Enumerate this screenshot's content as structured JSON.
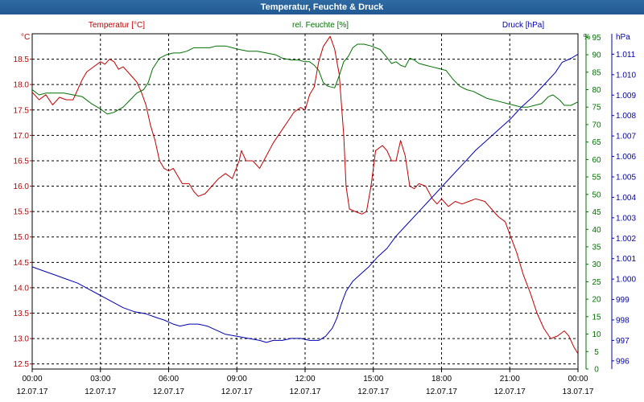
{
  "title": "Temperatur, Feuchte & Druck",
  "chart_data": {
    "type": "line",
    "x_ticks": [
      "00:00",
      "03:00",
      "06:00",
      "09:00",
      "12:00",
      "15:00",
      "18:00",
      "21:00",
      "00:00"
    ],
    "x_dates": [
      "12.07.17",
      "12.07.17",
      "12.07.17",
      "12.07.17",
      "12.07.17",
      "12.07.17",
      "12.07.17",
      "12.07.17",
      "13.07.17"
    ],
    "xlim": [
      0,
      24
    ],
    "grid": true,
    "axes": {
      "temp": {
        "label": "Temperatur [°C]",
        "unit": "°C",
        "color": "#c00000",
        "range": [
          12.4,
          19.0
        ],
        "ticks": [
          "12.5",
          "13.0",
          "13.5",
          "14.0",
          "14.5",
          "15.0",
          "15.5",
          "16.0",
          "16.5",
          "17.0",
          "17.5",
          "18.0",
          "18.5"
        ]
      },
      "hum": {
        "label": "rel. Feuchte [%]",
        "unit": "%",
        "color": "#007000",
        "range": [
          0,
          96
        ],
        "ticks": [
          "0",
          "5",
          "10",
          "15",
          "20",
          "25",
          "30",
          "35",
          "40",
          "45",
          "50",
          "55",
          "60",
          "65",
          "70",
          "75",
          "80",
          "85",
          "90",
          "95"
        ]
      },
      "press": {
        "label": "Druck [hPa]",
        "unit": "hPa",
        "color": "#0000b0",
        "range": [
          995.6,
          1012.0
        ],
        "ticks": [
          "996",
          "997",
          "998",
          "999",
          "1.000",
          "1.001",
          "1.002",
          "1.003",
          "1.004",
          "1.005",
          "1.006",
          "1.007",
          "1.008",
          "1.009",
          "1.010",
          "1.011"
        ]
      }
    },
    "series": [
      {
        "name": "Temperatur [°C]",
        "axis": "temp",
        "points": [
          [
            0,
            17.85
          ],
          [
            0.3,
            17.7
          ],
          [
            0.6,
            17.8
          ],
          [
            0.9,
            17.6
          ],
          [
            1.2,
            17.75
          ],
          [
            1.5,
            17.7
          ],
          [
            1.8,
            17.7
          ],
          [
            2.0,
            17.9
          ],
          [
            2.2,
            18.1
          ],
          [
            2.4,
            18.25
          ],
          [
            2.7,
            18.35
          ],
          [
            3.0,
            18.45
          ],
          [
            3.2,
            18.4
          ],
          [
            3.4,
            18.5
          ],
          [
            3.6,
            18.45
          ],
          [
            3.8,
            18.3
          ],
          [
            4.0,
            18.35
          ],
          [
            4.3,
            18.2
          ],
          [
            4.6,
            18.05
          ],
          [
            4.8,
            17.85
          ],
          [
            5.0,
            17.6
          ],
          [
            5.2,
            17.2
          ],
          [
            5.4,
            16.9
          ],
          [
            5.6,
            16.5
          ],
          [
            5.8,
            16.35
          ],
          [
            6.0,
            16.3
          ],
          [
            6.2,
            16.35
          ],
          [
            6.4,
            16.2
          ],
          [
            6.6,
            16.05
          ],
          [
            6.9,
            16.05
          ],
          [
            7.1,
            15.9
          ],
          [
            7.3,
            15.8
          ],
          [
            7.6,
            15.85
          ],
          [
            7.9,
            16.0
          ],
          [
            8.2,
            16.15
          ],
          [
            8.5,
            16.25
          ],
          [
            8.8,
            16.15
          ],
          [
            9.1,
            16.5
          ],
          [
            9.2,
            16.7
          ],
          [
            9.4,
            16.5
          ],
          [
            9.7,
            16.5
          ],
          [
            10.0,
            16.35
          ],
          [
            10.3,
            16.6
          ],
          [
            10.6,
            16.85
          ],
          [
            10.9,
            17.05
          ],
          [
            11.2,
            17.25
          ],
          [
            11.5,
            17.45
          ],
          [
            11.8,
            17.55
          ],
          [
            12.0,
            17.5
          ],
          [
            12.2,
            17.8
          ],
          [
            12.4,
            17.95
          ],
          [
            12.6,
            18.45
          ],
          [
            12.8,
            18.75
          ],
          [
            13.1,
            18.95
          ],
          [
            13.3,
            18.7
          ],
          [
            13.5,
            18.2
          ],
          [
            13.7,
            17.0
          ],
          [
            13.8,
            16.0
          ],
          [
            13.95,
            15.55
          ],
          [
            14.2,
            15.5
          ],
          [
            14.5,
            15.45
          ],
          [
            14.7,
            15.5
          ],
          [
            14.9,
            16.0
          ],
          [
            15.1,
            16.7
          ],
          [
            15.4,
            16.8
          ],
          [
            15.6,
            16.7
          ],
          [
            15.8,
            16.5
          ],
          [
            16.0,
            16.5
          ],
          [
            16.2,
            16.9
          ],
          [
            16.4,
            16.6
          ],
          [
            16.6,
            16.0
          ],
          [
            16.8,
            15.95
          ],
          [
            17.0,
            16.05
          ],
          [
            17.3,
            16.0
          ],
          [
            17.6,
            15.75
          ],
          [
            17.8,
            15.65
          ],
          [
            18.0,
            15.75
          ],
          [
            18.3,
            15.6
          ],
          [
            18.6,
            15.7
          ],
          [
            18.9,
            15.65
          ],
          [
            19.2,
            15.7
          ],
          [
            19.5,
            15.75
          ],
          [
            19.9,
            15.7
          ],
          [
            20.2,
            15.55
          ],
          [
            20.5,
            15.4
          ],
          [
            20.8,
            15.3
          ],
          [
            21.0,
            15.05
          ],
          [
            21.3,
            14.7
          ],
          [
            21.6,
            14.25
          ],
          [
            21.9,
            13.9
          ],
          [
            22.2,
            13.5
          ],
          [
            22.5,
            13.2
          ],
          [
            22.8,
            13.0
          ],
          [
            23.1,
            13.05
          ],
          [
            23.4,
            13.15
          ],
          [
            23.6,
            13.05
          ],
          [
            23.8,
            12.85
          ],
          [
            24.0,
            12.7
          ]
        ]
      },
      {
        "name": "rel. Feuchte [%]",
        "axis": "hum",
        "points": [
          [
            0,
            80
          ],
          [
            0.3,
            78.5
          ],
          [
            0.6,
            79
          ],
          [
            1.0,
            79
          ],
          [
            1.4,
            79
          ],
          [
            1.8,
            78.5
          ],
          [
            2.2,
            78
          ],
          [
            2.6,
            76
          ],
          [
            3.0,
            74.5
          ],
          [
            3.3,
            73
          ],
          [
            3.6,
            73.5
          ],
          [
            4.0,
            75
          ],
          [
            4.3,
            77
          ],
          [
            4.6,
            79
          ],
          [
            4.9,
            80
          ],
          [
            5.1,
            82
          ],
          [
            5.3,
            86
          ],
          [
            5.6,
            89
          ],
          [
            5.9,
            90
          ],
          [
            6.2,
            90.5
          ],
          [
            6.5,
            90.5
          ],
          [
            6.8,
            91
          ],
          [
            7.1,
            92
          ],
          [
            7.4,
            92
          ],
          [
            7.8,
            92
          ],
          [
            8.1,
            92.5
          ],
          [
            8.5,
            92.5
          ],
          [
            8.8,
            92
          ],
          [
            9.1,
            91.5
          ],
          [
            9.5,
            91
          ],
          [
            9.9,
            91
          ],
          [
            10.3,
            90.5
          ],
          [
            10.7,
            90
          ],
          [
            11.0,
            89
          ],
          [
            11.4,
            88.5
          ],
          [
            11.7,
            88.5
          ],
          [
            12.0,
            88
          ],
          [
            12.2,
            88
          ],
          [
            12.4,
            87
          ],
          [
            12.6,
            85.5
          ],
          [
            12.8,
            82
          ],
          [
            13.0,
            81
          ],
          [
            13.3,
            80.5
          ],
          [
            13.5,
            84
          ],
          [
            13.7,
            88
          ],
          [
            13.9,
            89.5
          ],
          [
            14.1,
            92
          ],
          [
            14.3,
            93
          ],
          [
            14.6,
            93
          ],
          [
            14.9,
            92.5
          ],
          [
            15.1,
            92
          ],
          [
            15.3,
            91.5
          ],
          [
            15.5,
            90
          ],
          [
            15.8,
            87.5
          ],
          [
            16.0,
            88
          ],
          [
            16.2,
            87
          ],
          [
            16.4,
            86.5
          ],
          [
            16.6,
            89
          ],
          [
            16.8,
            88.5
          ],
          [
            17.0,
            87.5
          ],
          [
            17.3,
            87
          ],
          [
            17.6,
            86.5
          ],
          [
            17.9,
            86
          ],
          [
            18.2,
            85.5
          ],
          [
            18.5,
            83
          ],
          [
            18.8,
            81
          ],
          [
            19.1,
            80
          ],
          [
            19.4,
            79.5
          ],
          [
            19.7,
            78.5
          ],
          [
            20.0,
            77.5
          ],
          [
            20.3,
            77
          ],
          [
            20.6,
            76.5
          ],
          [
            20.9,
            76
          ],
          [
            21.2,
            75.5
          ],
          [
            21.5,
            75
          ],
          [
            21.8,
            75
          ],
          [
            22.1,
            75.5
          ],
          [
            22.4,
            76
          ],
          [
            22.7,
            78
          ],
          [
            22.9,
            78.5
          ],
          [
            23.2,
            77
          ],
          [
            23.4,
            75.5
          ],
          [
            23.7,
            75.5
          ],
          [
            24.0,
            76.5
          ]
        ]
      },
      {
        "name": "Druck [hPa]",
        "axis": "press",
        "points": [
          [
            0,
            1000.6
          ],
          [
            0.5,
            1000.4
          ],
          [
            1.0,
            1000.2
          ],
          [
            1.5,
            1000.0
          ],
          [
            2.0,
            999.8
          ],
          [
            2.5,
            999.5
          ],
          [
            3.0,
            999.2
          ],
          [
            3.5,
            998.9
          ],
          [
            4.0,
            998.6
          ],
          [
            4.5,
            998.4
          ],
          [
            5.0,
            998.3
          ],
          [
            5.5,
            998.1
          ],
          [
            5.8,
            998.0
          ],
          [
            6.2,
            997.8
          ],
          [
            6.5,
            997.7
          ],
          [
            6.9,
            997.8
          ],
          [
            7.3,
            997.8
          ],
          [
            7.7,
            997.7
          ],
          [
            8.1,
            997.5
          ],
          [
            8.5,
            997.3
          ],
          [
            9.0,
            997.2
          ],
          [
            9.5,
            997.1
          ],
          [
            10.0,
            997.0
          ],
          [
            10.3,
            996.9
          ],
          [
            10.6,
            997.0
          ],
          [
            11.0,
            997.0
          ],
          [
            11.4,
            997.1
          ],
          [
            11.8,
            997.1
          ],
          [
            12.2,
            997.0
          ],
          [
            12.6,
            997.0
          ],
          [
            12.9,
            997.2
          ],
          [
            13.2,
            997.6
          ],
          [
            13.4,
            998.1
          ],
          [
            13.6,
            998.8
          ],
          [
            13.8,
            999.4
          ],
          [
            14.1,
            999.9
          ],
          [
            14.4,
            1000.2
          ],
          [
            14.8,
            1000.6
          ],
          [
            15.2,
            1001.1
          ],
          [
            15.6,
            1001.5
          ],
          [
            16.0,
            1002.1
          ],
          [
            16.5,
            1002.7
          ],
          [
            17.0,
            1003.3
          ],
          [
            17.5,
            1003.9
          ],
          [
            18.0,
            1004.5
          ],
          [
            18.5,
            1005.1
          ],
          [
            19.0,
            1005.7
          ],
          [
            19.5,
            1006.3
          ],
          [
            20.0,
            1006.8
          ],
          [
            20.5,
            1007.3
          ],
          [
            21.0,
            1007.8
          ],
          [
            21.5,
            1008.4
          ],
          [
            22.0,
            1008.9
          ],
          [
            22.5,
            1009.5
          ],
          [
            23.0,
            1010.1
          ],
          [
            23.3,
            1010.6
          ],
          [
            23.7,
            1010.8
          ],
          [
            24.0,
            1011.0
          ]
        ]
      }
    ]
  }
}
